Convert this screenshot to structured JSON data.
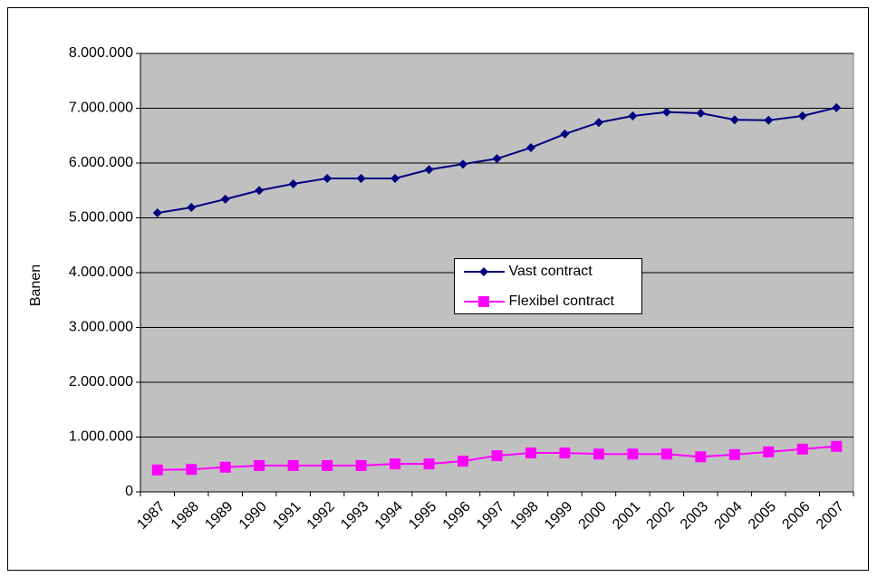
{
  "chart_data": {
    "type": "line",
    "y_label": "Banen",
    "categories": [
      "1987",
      "1988",
      "1989",
      "1990",
      "1991",
      "1992",
      "1993",
      "1994",
      "1995",
      "1996",
      "1997",
      "1998",
      "1999",
      "2000",
      "2001",
      "2002",
      "2003",
      "2004",
      "2005",
      "2006",
      "2007"
    ],
    "series": [
      {
        "name": "Vast contract",
        "color": "#000080",
        "marker": "diamond",
        "values": [
          5090000,
          5190000,
          5340000,
          5500000,
          5620000,
          5720000,
          5720000,
          5720000,
          5880000,
          5980000,
          6080000,
          6280000,
          6530000,
          6740000,
          6860000,
          6930000,
          6910000,
          6790000,
          6780000,
          6860000,
          7010000
        ]
      },
      {
        "name": "Flexibel contract",
        "color": "#ff00ff",
        "marker": "square",
        "values": [
          400000,
          410000,
          450000,
          480000,
          480000,
          480000,
          480000,
          510000,
          510000,
          560000,
          660000,
          710000,
          710000,
          690000,
          690000,
          690000,
          640000,
          680000,
          730000,
          780000,
          830000
        ]
      }
    ],
    "ylim": [
      0,
      8000000
    ],
    "yticks": [
      0,
      {
        "value": 1000000,
        "label": "1.000.000"
      },
      {
        "value": 2000000,
        "label": "2.000.000"
      },
      {
        "value": 3000000,
        "label": "3.000.000"
      },
      {
        "value": 4000000,
        "label": "4.000.000"
      },
      {
        "value": 5000000,
        "label": "5.000.000"
      },
      {
        "value": 6000000,
        "label": "6.000.000"
      },
      {
        "value": 7000000,
        "label": "7.000.000"
      },
      {
        "value": 8000000,
        "label": "8.000.000"
      }
    ],
    "grid": true,
    "plot_background": "#c0c0c0",
    "legend": "center"
  }
}
